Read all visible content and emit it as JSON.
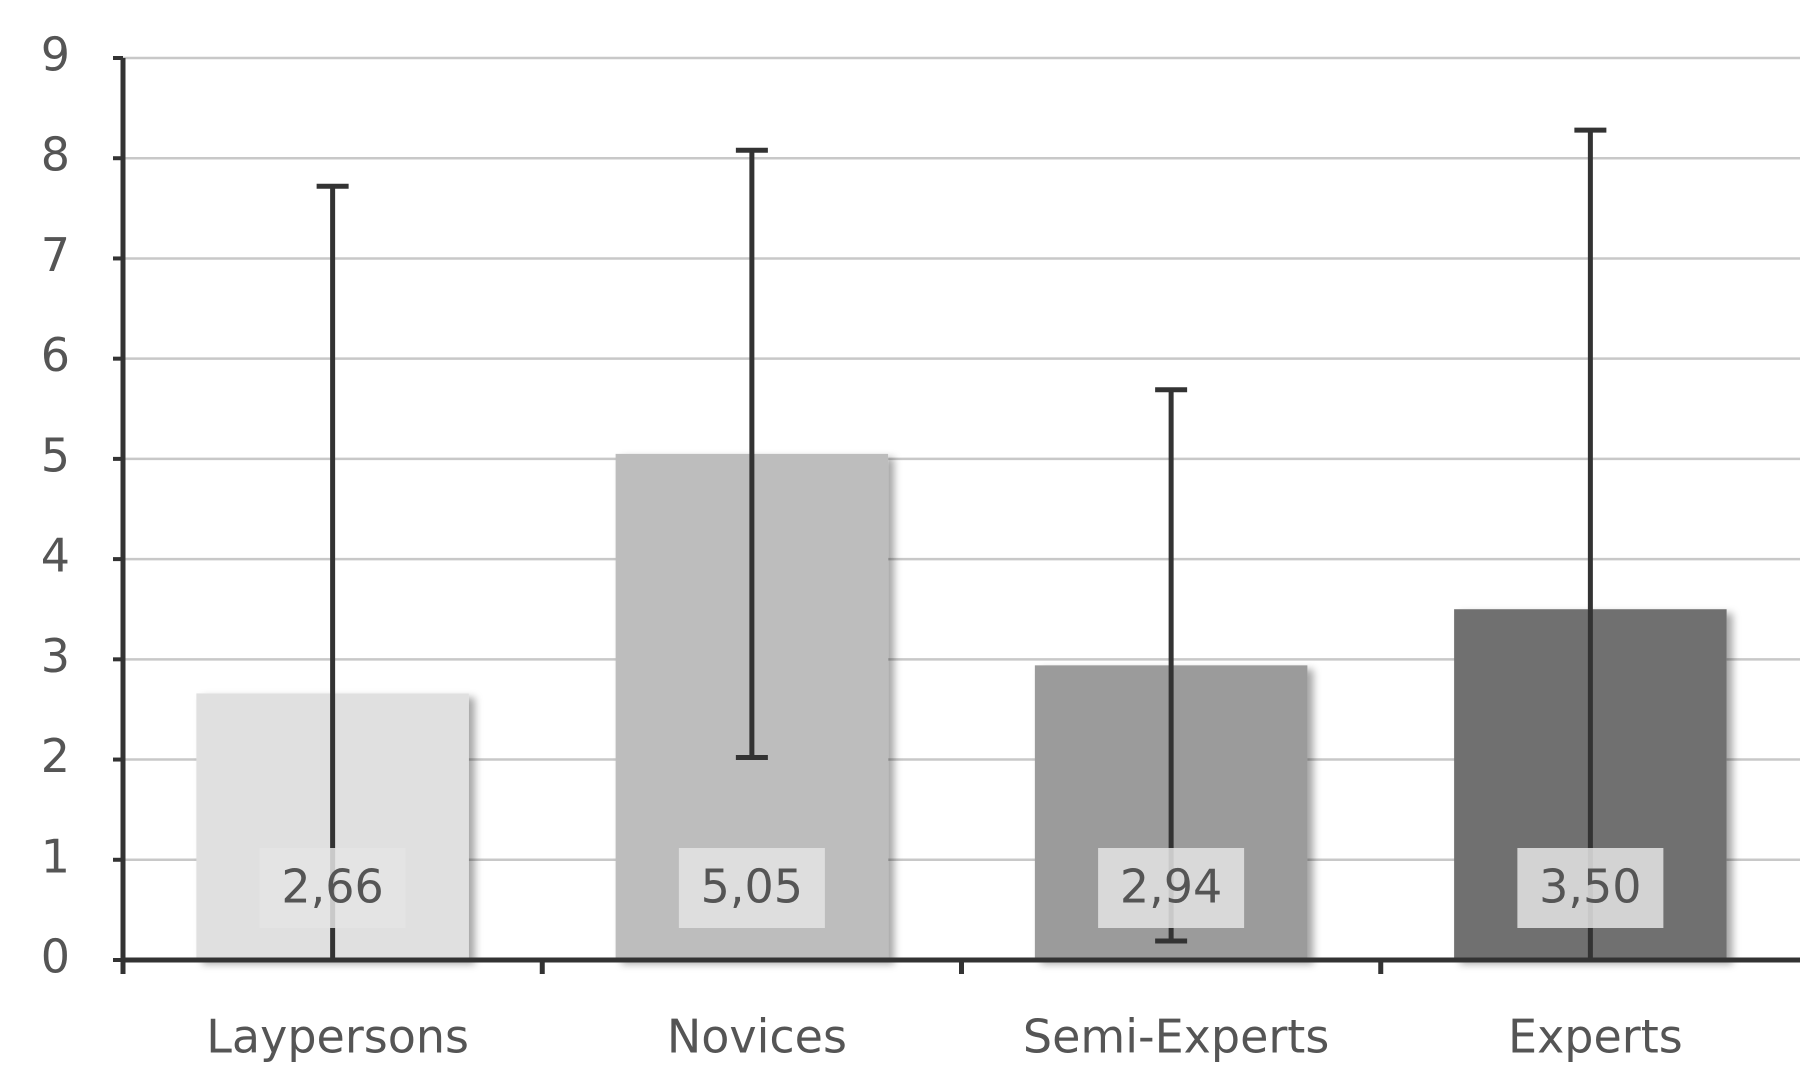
{
  "chart_data": {
    "type": "bar",
    "categories": [
      "Laypersons",
      "Novices",
      "Semi-Experts",
      "Experts"
    ],
    "values": [
      2.66,
      5.05,
      2.94,
      3.5
    ],
    "value_labels": [
      "2,66",
      "5,05",
      "2,94",
      "3,50"
    ],
    "errors": [
      5.06,
      3.03,
      2.75,
      4.78
    ],
    "colors": [
      "#e0e0e0",
      "#bdbdbd",
      "#9b9b9b",
      "#6f6f6f"
    ],
    "ylim": [
      0,
      9
    ],
    "yticks": [
      0,
      1,
      2,
      3,
      4,
      5,
      6,
      7,
      8,
      9
    ],
    "grid": true
  }
}
